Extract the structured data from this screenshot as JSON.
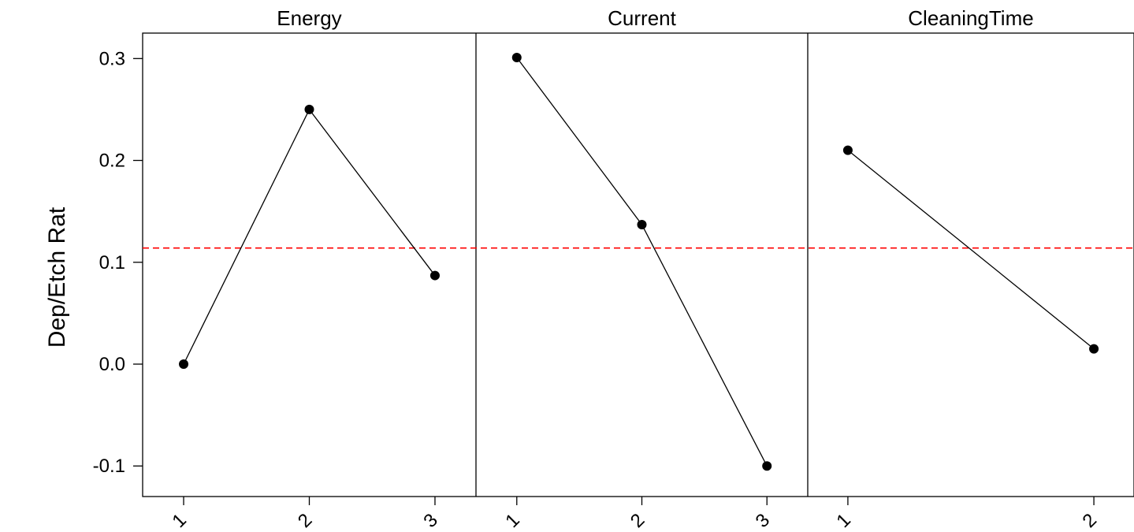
{
  "chart_data": {
    "type": "line",
    "ylabel": "Dep/Etch Rat",
    "ylim": [
      -0.13,
      0.325
    ],
    "yticks": [
      -0.1,
      0.0,
      0.1,
      0.2,
      0.3
    ],
    "ytick_labels": [
      "-0.1",
      "0.0",
      "0.1",
      "0.2",
      "0.3"
    ],
    "reference_line": {
      "y": 0.114,
      "color": "#ff0000",
      "style": "dashed"
    },
    "point_color": "#000000",
    "line_color": "#000000",
    "panels": [
      {
        "title": "Energy",
        "categories": [
          "1",
          "2",
          "3"
        ],
        "values": [
          0.0,
          0.25,
          0.087
        ]
      },
      {
        "title": "Current",
        "categories": [
          "1",
          "2",
          "3"
        ],
        "values": [
          0.301,
          0.137,
          -0.1
        ]
      },
      {
        "title": "CleaningTime",
        "categories": [
          "1",
          "2"
        ],
        "values": [
          0.21,
          0.015
        ]
      }
    ]
  }
}
